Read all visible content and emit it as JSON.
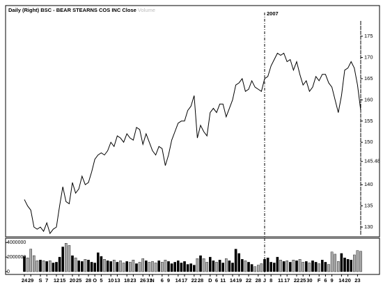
{
  "chart_data": [
    {
      "type": "line",
      "title": "Daily (Right) BSC - BEAR STEARNS COS INC",
      "series": [
        {
          "name": "Close",
          "color": "#000000",
          "values": [
            136.5,
            135,
            134,
            130,
            129.5,
            130,
            129,
            131,
            128.5,
            129.5,
            130,
            135,
            139.5,
            136,
            135.5,
            140.5,
            138,
            139,
            142,
            140,
            140.5,
            143,
            146,
            147,
            147.5,
            147,
            148,
            150,
            149,
            151.5,
            151,
            150,
            152,
            151,
            150.5,
            153.5,
            153,
            149.5,
            152,
            150,
            148,
            147,
            149,
            148.5,
            144.5,
            147,
            150.5,
            152.5,
            154.5,
            155,
            155,
            157.5,
            158.5,
            161,
            151,
            154,
            152.5,
            151.5,
            157,
            158,
            157,
            159,
            159,
            156,
            158,
            160,
            163.5,
            164,
            165,
            162,
            162.5,
            164.5,
            163,
            162.5,
            162,
            165,
            165.5,
            168,
            169.5,
            171,
            170.5,
            171,
            169,
            169.5,
            167,
            169,
            166,
            163.5,
            164.5,
            162,
            163,
            165.5,
            164.5,
            166,
            166,
            164,
            163,
            160,
            157,
            161,
            167,
            167.5,
            169,
            167.5,
            163.5,
            157.5
          ]
        }
      ],
      "ylim": [
        127.7,
        181.9
      ],
      "yticks": [
        130,
        135,
        140,
        145.48,
        150,
        155,
        160,
        165,
        170,
        175
      ],
      "annotation": {
        "text": "2007",
        "category": "J"
      }
    },
    {
      "type": "bar",
      "categories": [
        "24",
        null,
        "29",
        null,
        null,
        "S",
        null,
        "7",
        null,
        null,
        "12",
        null,
        "15",
        null,
        null,
        "20",
        null,
        "25",
        null,
        null,
        "28",
        null,
        "O",
        null,
        "5",
        null,
        null,
        "10",
        null,
        "13",
        null,
        null,
        "18",
        null,
        "23",
        null,
        null,
        "26",
        null,
        "31",
        "N",
        null,
        null,
        "6",
        null,
        "9",
        null,
        null,
        "14",
        null,
        "17",
        null,
        null,
        "22",
        null,
        "28",
        null,
        null,
        "D",
        null,
        "6",
        null,
        "11",
        null,
        null,
        "14",
        null,
        "19",
        null,
        null,
        "22",
        null,
        null,
        "28",
        null,
        "J",
        null,
        "8",
        null,
        null,
        "11",
        null,
        "17",
        null,
        null,
        "22",
        null,
        "25",
        null,
        "30",
        null,
        null,
        "F",
        null,
        "6",
        null,
        "9",
        null,
        null,
        "14",
        null,
        "20",
        null,
        null,
        "23",
        null
      ],
      "series": [
        {
          "name": "Volume",
          "color": "#aaaaaa",
          "values": [
            2100000,
            1900000,
            3100000,
            2200000,
            1500000,
            1600000,
            1500000,
            1400000,
            1500000,
            1200000,
            1300000,
            2000000,
            3400000,
            3900000,
            3600000,
            2200000,
            1900000,
            1500000,
            1400000,
            1700000,
            1600000,
            1300000,
            1200000,
            2600000,
            2100000,
            1700000,
            1500000,
            1400000,
            1600000,
            1300000,
            1500000,
            1200000,
            1400000,
            1300000,
            1600000,
            1100000,
            1300000,
            1800000,
            1500000,
            1300000,
            1400000,
            1200000,
            1500000,
            1300000,
            1600000,
            1400000,
            1100000,
            1300000,
            1500000,
            1200000,
            1400000,
            1000000,
            1100000,
            900000,
            1800000,
            2200000,
            1800000,
            1300000,
            2000000,
            1500000,
            1300000,
            1600000,
            1200000,
            1800000,
            1500000,
            1200000,
            3100000,
            2500000,
            1700000,
            1500000,
            1300000,
            1000000,
            700000,
            900000,
            1100000,
            1700000,
            1900000,
            1300000,
            1200000,
            2000000,
            1600000,
            1400000,
            1500000,
            1300000,
            1600000,
            1500000,
            1700000,
            1300000,
            1400000,
            1200000,
            1500000,
            1300000,
            1100000,
            1600000,
            1300000,
            1000000,
            2700000,
            2400000,
            1400000,
            2500000,
            1900000,
            1700000,
            1600000,
            2300000,
            2900000,
            2800000
          ]
        }
      ],
      "ylim": [
        0,
        4400000
      ],
      "yticks": [
        0,
        2000000,
        4000000
      ]
    }
  ]
}
